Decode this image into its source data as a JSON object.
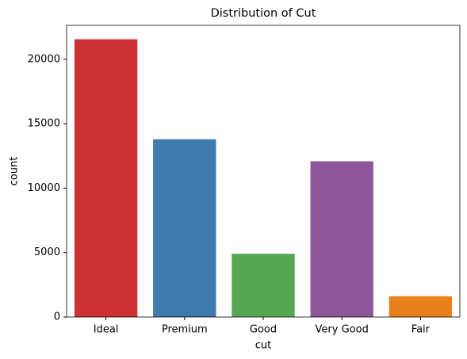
{
  "chart_data": {
    "type": "bar",
    "title": "Distribution of Cut",
    "x_label": "cut",
    "y_label": "count",
    "categories": [
      "Ideal",
      "Premium",
      "Good",
      "Very Good",
      "Fair"
    ],
    "values": [
      21551,
      13791,
      4906,
      12082,
      1610
    ],
    "colors": [
      "#cc3134",
      "#3f7cad",
      "#55a84f",
      "#8e579b",
      "#e8801c"
    ],
    "ylim": [
      0,
      22629
    ],
    "yticks": [
      0,
      5000,
      10000,
      15000,
      20000
    ],
    "grid": false
  }
}
